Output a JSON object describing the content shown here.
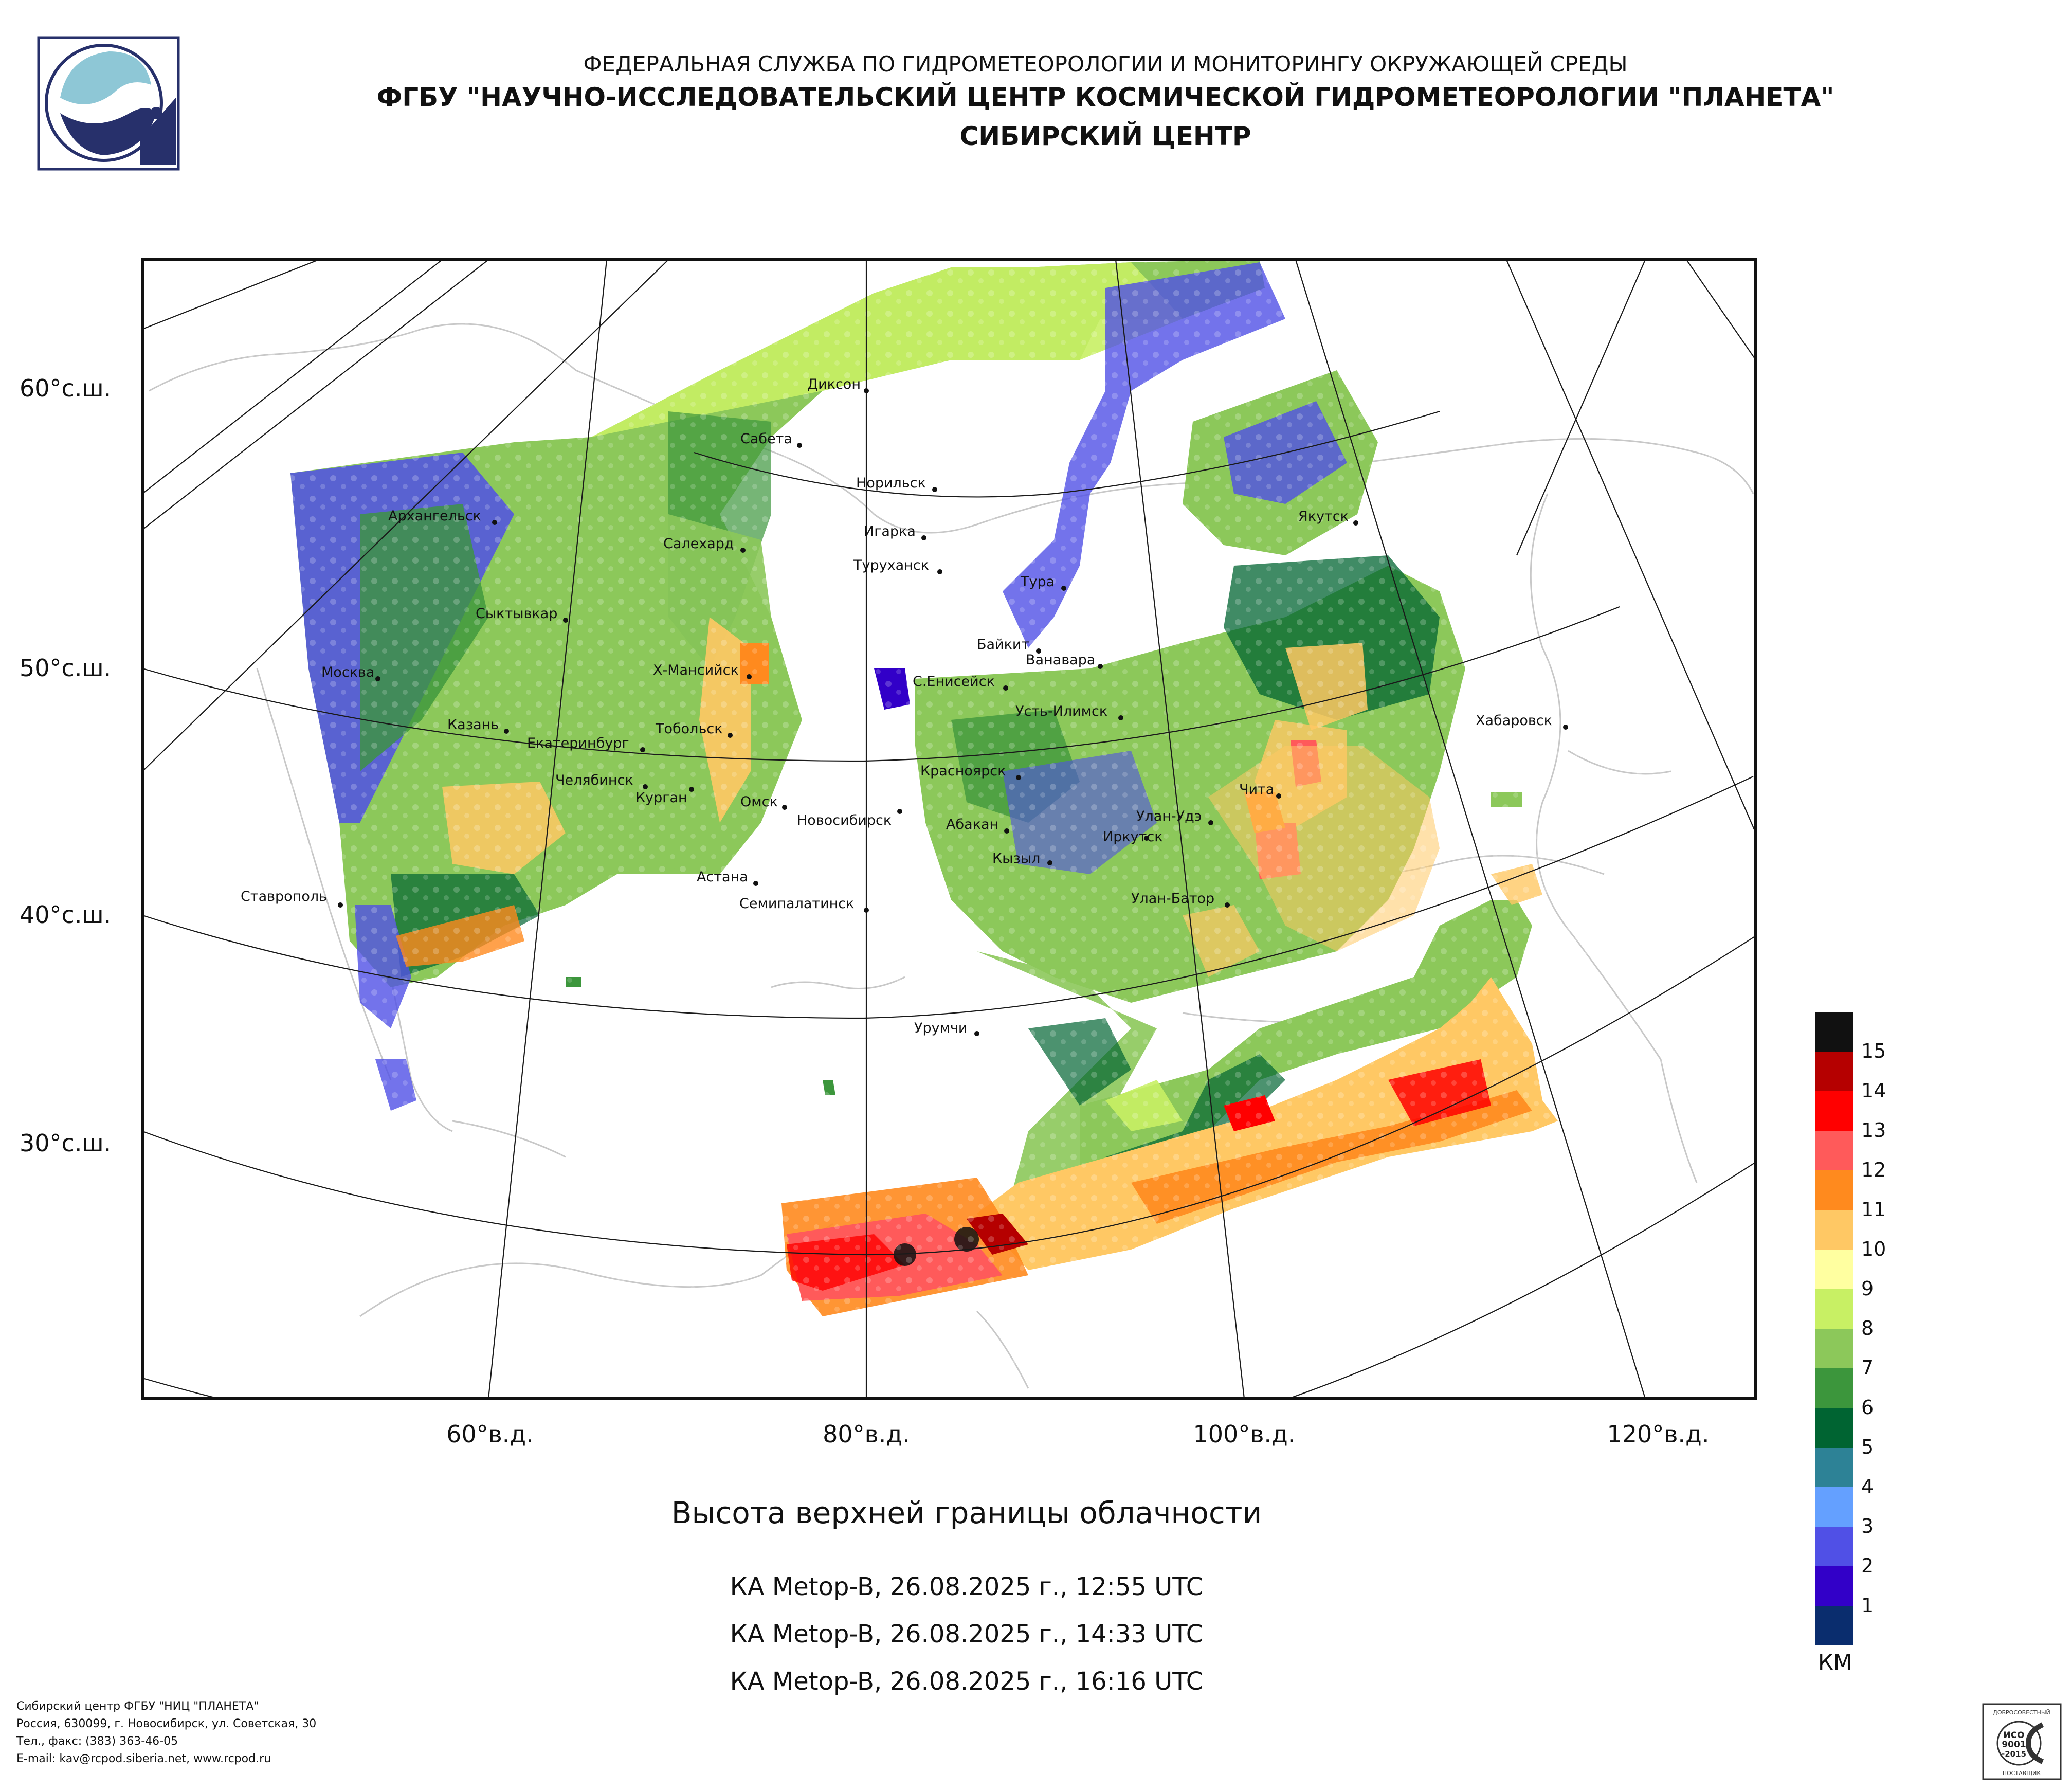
{
  "header": {
    "line1": "ФЕДЕРАЛЬНАЯ СЛУЖБА ПО ГИДРОМЕТЕОРОЛОГИИ И МОНИТОРИНГУ ОКРУЖАЮЩЕЙ СРЕДЫ",
    "line2": "ФГБУ \"НАУЧНО-ИССЛЕДОВАТЕЛЬСКИЙ ЦЕНТР КОСМИЧЕСКОЙ ГИДРОМЕТЕОРОЛОГИИ \"ПЛАНЕТА\"",
    "line3": "СИБИРСКИЙ ЦЕНТР"
  },
  "lat_labels": [
    "60°с.ш.",
    "50°с.ш.",
    "40°с.ш.",
    "30°с.ш."
  ],
  "lon_labels": [
    "60°в.д.",
    "80°в.д.",
    "100°в.д.",
    "120°в.д."
  ],
  "cities": [
    {
      "name": "Диксон"
    },
    {
      "name": "Сабета"
    },
    {
      "name": "Норильск"
    },
    {
      "name": "Игарка"
    },
    {
      "name": "Туруханск"
    },
    {
      "name": "Архангельск"
    },
    {
      "name": "Салехард"
    },
    {
      "name": "Тура"
    },
    {
      "name": "Якутск"
    },
    {
      "name": "Сыктывкар"
    },
    {
      "name": "Байкит"
    },
    {
      "name": "Ванавара"
    },
    {
      "name": "Москва"
    },
    {
      "name": "Х-Мансийск"
    },
    {
      "name": "С.Енисейск"
    },
    {
      "name": "Усть-Илимск"
    },
    {
      "name": "Хабаровск"
    },
    {
      "name": "Казань"
    },
    {
      "name": "Тобольск"
    },
    {
      "name": "Екатеринбург"
    },
    {
      "name": "Челябинск"
    },
    {
      "name": "Курган"
    },
    {
      "name": "Красноярск"
    },
    {
      "name": "Чита"
    },
    {
      "name": "Омск"
    },
    {
      "name": "Новосибирск"
    },
    {
      "name": "Абакан"
    },
    {
      "name": "Улан-Удэ"
    },
    {
      "name": "Иркутск"
    },
    {
      "name": "Кызыл"
    },
    {
      "name": "Астана"
    },
    {
      "name": "Ставрополь"
    },
    {
      "name": "Семипалатинск"
    },
    {
      "name": "Улан-Батор"
    },
    {
      "name": "Урумчи"
    }
  ],
  "legend": {
    "unit": "КМ",
    "levels": [
      {
        "value": "15",
        "color": "#111111"
      },
      {
        "value": "14",
        "color": "#b50000"
      },
      {
        "value": "13",
        "color": "#ff0000"
      },
      {
        "value": "12",
        "color": "#ff5a5a"
      },
      {
        "value": "11",
        "color": "#ff8a1e"
      },
      {
        "value": "10",
        "color": "#ffc864"
      },
      {
        "value": "9",
        "color": "#ffffa0"
      },
      {
        "value": "8",
        "color": "#c8f064"
      },
      {
        "value": "7",
        "color": "#8cc85a"
      },
      {
        "value": "6",
        "color": "#3c963c"
      },
      {
        "value": "5",
        "color": "#006432"
      },
      {
        "value": "4",
        "color": "#2d8296"
      },
      {
        "value": "3",
        "color": "#64a0ff"
      },
      {
        "value": "2",
        "color": "#5050e6"
      },
      {
        "value": "1",
        "color": "#3200c8"
      },
      {
        "value": "",
        "color": "#0a2d6e"
      }
    ]
  },
  "caption": "Высота верхней границы облачности",
  "passes": [
    "КА Metop-B, 26.08.2025 г., 12:55 UTC",
    "КА Metop-B, 26.08.2025 г., 14:33 UTC",
    "КА Metop-B, 26.08.2025 г., 16:16 UTC"
  ],
  "footer": [
    "Сибирский центр ФГБУ \"НИЦ \"ПЛАНЕТА\"",
    "Россия, 630099, г. Новосибирск, ул. Советская, 30",
    "Тел., факс: (383) 363-46-05",
    "E-mail: kav@rcpod.siberia.net, www.rcpod.ru"
  ],
  "iso_badge": {
    "top": "ДОБРОСОВЕСТНЫЙ",
    "mid1": "ИСО",
    "mid2": "9001",
    "mid3": "-2015",
    "bottom": "ПОСТАВЩИК"
  }
}
